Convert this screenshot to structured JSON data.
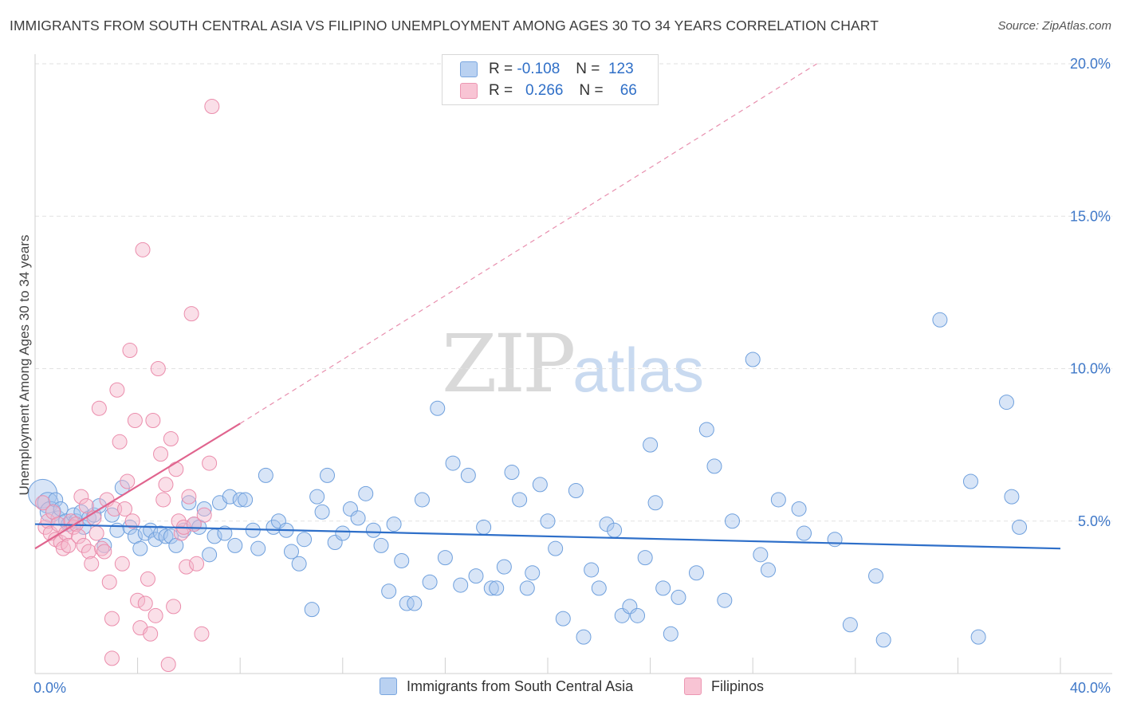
{
  "title": "IMMIGRANTS FROM SOUTH CENTRAL ASIA VS FILIPINO UNEMPLOYMENT AMONG AGES 30 TO 34 YEARS CORRELATION CHART",
  "source": "Source: ZipAtlas.com",
  "watermark": {
    "zip": "ZIP",
    "atlas": "atlas"
  },
  "legend": {
    "rows": [
      {
        "r_label": "R =",
        "r_value": "-0.108",
        "n_label": "N =",
        "n_value": "123"
      },
      {
        "r_label": "R =",
        "r_value": "0.266",
        "n_label": "N =",
        "n_value": "66"
      }
    ]
  },
  "chart_data": {
    "type": "scatter",
    "title": "IMMIGRANTS FROM SOUTH CENTRAL ASIA VS FILIPINO UNEMPLOYMENT AMONG AGES 30 TO 34 YEARS CORRELATION CHART",
    "xlabel": "",
    "ylabel": "Unemployment Among Ages 30 to 34 years",
    "xlim": [
      0,
      40
    ],
    "ylim": [
      0,
      20
    ],
    "x_tick_labels": [
      "0.0%",
      "40.0%"
    ],
    "y_ticks": [
      5,
      10,
      15,
      20
    ],
    "y_tick_labels": [
      "5.0%",
      "10.0%",
      "15.0%",
      "20.0%"
    ],
    "grid": true,
    "legend_position": "bottom",
    "series": [
      {
        "name": "Immigrants from South Central Asia",
        "color": "#a9c6ee",
        "edge": "#6fa0dd",
        "trend": {
          "x": [
            0,
            40
          ],
          "y": [
            4.9,
            4.1
          ],
          "color": "#2e6fc9"
        },
        "points": [
          [
            0.3,
            5.9
          ],
          [
            0.5,
            5.6
          ],
          [
            0.6,
            5.3
          ],
          [
            0.8,
            5.7
          ],
          [
            0.9,
            5.1
          ],
          [
            1.0,
            5.4
          ],
          [
            1.2,
            5.0
          ],
          [
            1.3,
            4.9
          ],
          [
            1.5,
            5.2
          ],
          [
            1.6,
            5.0
          ],
          [
            1.8,
            5.3
          ],
          [
            1.9,
            4.8
          ],
          [
            2.1,
            5.1
          ],
          [
            2.3,
            5.2
          ],
          [
            2.5,
            5.5
          ],
          [
            2.7,
            4.2
          ],
          [
            3.0,
            5.2
          ],
          [
            3.2,
            4.7
          ],
          [
            3.4,
            6.1
          ],
          [
            3.7,
            4.8
          ],
          [
            3.9,
            4.5
          ],
          [
            4.1,
            4.1
          ],
          [
            4.3,
            4.6
          ],
          [
            4.5,
            4.7
          ],
          [
            4.7,
            4.4
          ],
          [
            4.9,
            4.6
          ],
          [
            5.1,
            4.5
          ],
          [
            5.3,
            4.5
          ],
          [
            5.5,
            4.2
          ],
          [
            5.8,
            4.7
          ],
          [
            6.0,
            5.6
          ],
          [
            6.2,
            4.9
          ],
          [
            6.4,
            4.8
          ],
          [
            6.6,
            5.4
          ],
          [
            6.8,
            3.9
          ],
          [
            7.0,
            4.5
          ],
          [
            7.2,
            5.6
          ],
          [
            7.4,
            4.6
          ],
          [
            7.6,
            5.8
          ],
          [
            7.8,
            4.2
          ],
          [
            8.0,
            5.7
          ],
          [
            8.2,
            5.7
          ],
          [
            8.5,
            4.7
          ],
          [
            8.7,
            4.1
          ],
          [
            9.0,
            6.5
          ],
          [
            9.3,
            4.8
          ],
          [
            9.5,
            5.0
          ],
          [
            9.8,
            4.7
          ],
          [
            10.0,
            4.0
          ],
          [
            10.3,
            3.6
          ],
          [
            10.5,
            4.4
          ],
          [
            10.8,
            2.1
          ],
          [
            11.0,
            5.8
          ],
          [
            11.2,
            5.3
          ],
          [
            11.4,
            6.5
          ],
          [
            11.7,
            4.3
          ],
          [
            12.0,
            4.6
          ],
          [
            12.3,
            5.4
          ],
          [
            12.6,
            5.1
          ],
          [
            12.9,
            5.9
          ],
          [
            13.2,
            4.7
          ],
          [
            13.5,
            4.2
          ],
          [
            13.8,
            2.7
          ],
          [
            14.0,
            4.9
          ],
          [
            14.3,
            3.7
          ],
          [
            14.5,
            2.3
          ],
          [
            14.8,
            2.3
          ],
          [
            15.1,
            5.7
          ],
          [
            15.4,
            3.0
          ],
          [
            15.7,
            8.7
          ],
          [
            16.0,
            3.8
          ],
          [
            16.3,
            6.9
          ],
          [
            16.6,
            2.9
          ],
          [
            16.9,
            6.5
          ],
          [
            17.2,
            3.2
          ],
          [
            17.5,
            4.8
          ],
          [
            17.8,
            2.8
          ],
          [
            18.0,
            2.8
          ],
          [
            18.3,
            3.5
          ],
          [
            18.6,
            6.6
          ],
          [
            18.9,
            5.7
          ],
          [
            19.2,
            2.8
          ],
          [
            19.4,
            3.3
          ],
          [
            19.7,
            6.2
          ],
          [
            20.0,
            5.0
          ],
          [
            20.3,
            4.1
          ],
          [
            20.6,
            1.8
          ],
          [
            21.1,
            6.0
          ],
          [
            21.4,
            1.2
          ],
          [
            21.7,
            3.4
          ],
          [
            22.0,
            2.8
          ],
          [
            22.3,
            4.9
          ],
          [
            22.6,
            4.7
          ],
          [
            22.9,
            1.9
          ],
          [
            23.2,
            2.2
          ],
          [
            23.5,
            1.9
          ],
          [
            23.8,
            3.8
          ],
          [
            24.0,
            7.5
          ],
          [
            24.2,
            5.6
          ],
          [
            24.5,
            2.8
          ],
          [
            24.8,
            1.3
          ],
          [
            25.1,
            2.5
          ],
          [
            25.8,
            3.3
          ],
          [
            26.2,
            8.0
          ],
          [
            26.5,
            6.8
          ],
          [
            26.9,
            2.4
          ],
          [
            27.2,
            5.0
          ],
          [
            28.0,
            10.3
          ],
          [
            28.3,
            3.9
          ],
          [
            28.6,
            3.4
          ],
          [
            29.0,
            5.7
          ],
          [
            29.8,
            5.4
          ],
          [
            30.0,
            4.6
          ],
          [
            31.2,
            4.4
          ],
          [
            31.8,
            1.6
          ],
          [
            32.8,
            3.2
          ],
          [
            33.1,
            1.1
          ],
          [
            35.3,
            11.6
          ],
          [
            36.5,
            6.3
          ],
          [
            36.8,
            1.2
          ],
          [
            37.9,
            8.9
          ],
          [
            38.1,
            5.8
          ],
          [
            38.4,
            4.8
          ]
        ]
      },
      {
        "name": "Filipinos",
        "color": "#f5b8cb",
        "edge": "#eb8dac",
        "trend": {
          "x": [
            0,
            8
          ],
          "y": [
            4.1,
            8.2
          ],
          "color": "#e0648e"
        },
        "trend_extension": {
          "x": [
            8,
            30.5
          ],
          "y": [
            8.2,
            20.0
          ]
        },
        "points": [
          [
            0.3,
            5.6
          ],
          [
            0.4,
            4.8
          ],
          [
            0.5,
            5.0
          ],
          [
            0.6,
            4.6
          ],
          [
            0.7,
            5.3
          ],
          [
            0.8,
            4.4
          ],
          [
            0.9,
            4.9
          ],
          [
            1.0,
            4.3
          ],
          [
            1.1,
            4.1
          ],
          [
            1.2,
            4.6
          ],
          [
            1.3,
            4.2
          ],
          [
            1.4,
            5.0
          ],
          [
            1.5,
            4.8
          ],
          [
            1.6,
            4.9
          ],
          [
            1.7,
            4.5
          ],
          [
            1.8,
            5.8
          ],
          [
            1.9,
            4.2
          ],
          [
            2.0,
            5.5
          ],
          [
            2.1,
            4.0
          ],
          [
            2.2,
            3.6
          ],
          [
            2.3,
            5.1
          ],
          [
            2.4,
            4.6
          ],
          [
            2.5,
            8.7
          ],
          [
            2.6,
            4.1
          ],
          [
            2.7,
            4.0
          ],
          [
            2.8,
            5.7
          ],
          [
            2.9,
            3.0
          ],
          [
            3.0,
            1.8
          ],
          [
            3.1,
            5.4
          ],
          [
            3.2,
            9.3
          ],
          [
            3.3,
            7.6
          ],
          [
            3.4,
            3.6
          ],
          [
            3.5,
            5.4
          ],
          [
            3.6,
            6.3
          ],
          [
            3.7,
            10.6
          ],
          [
            3.8,
            5.0
          ],
          [
            3.9,
            8.3
          ],
          [
            4.0,
            2.4
          ],
          [
            4.1,
            1.5
          ],
          [
            4.2,
            13.9
          ],
          [
            4.3,
            2.3
          ],
          [
            4.4,
            3.1
          ],
          [
            4.5,
            1.3
          ],
          [
            4.6,
            8.3
          ],
          [
            4.7,
            1.9
          ],
          [
            4.8,
            10.0
          ],
          [
            4.9,
            7.2
          ],
          [
            5.0,
            5.7
          ],
          [
            5.1,
            6.2
          ],
          [
            5.2,
            0.3
          ],
          [
            5.3,
            7.7
          ],
          [
            5.4,
            2.2
          ],
          [
            5.5,
            6.7
          ],
          [
            5.6,
            5.0
          ],
          [
            5.7,
            4.6
          ],
          [
            5.8,
            4.8
          ],
          [
            5.9,
            3.5
          ],
          [
            6.0,
            5.8
          ],
          [
            6.1,
            11.8
          ],
          [
            6.2,
            4.9
          ],
          [
            6.3,
            3.6
          ],
          [
            6.5,
            1.3
          ],
          [
            6.6,
            5.2
          ],
          [
            6.8,
            6.9
          ],
          [
            6.9,
            18.6
          ],
          [
            3.0,
            0.5
          ]
        ]
      }
    ]
  }
}
